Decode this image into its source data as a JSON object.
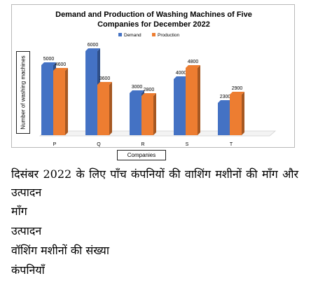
{
  "chart_data": {
    "type": "bar",
    "title_line1": "Demand and Production of Washing Machines of Five",
    "title_line2": "Companies for December 2022",
    "xlabel": "Companies",
    "ylabel": "Number of washing machines",
    "categories": [
      "P",
      "Q",
      "R",
      "S",
      "T"
    ],
    "series": [
      {
        "name": "Demand",
        "values": [
          5000,
          6000,
          3000,
          4000,
          2300
        ],
        "color": "#4472c4"
      },
      {
        "name": "Production",
        "values": [
          4600,
          3600,
          2800,
          4800,
          2900
        ],
        "color": "#ed7d31"
      }
    ],
    "ylim": [
      0,
      6000
    ],
    "grid": false,
    "legend_position": "top-center",
    "three_d": true
  },
  "hindi_text": {
    "title": "दिसंबर 2022 के लिए पाँच कंपनियों की वाशिंग मशीनों की माँग और उत्पादन",
    "demand": "माँग",
    "production": "उत्पादन",
    "ylabel": "वॉशिंग मशीनों की संख्या",
    "xlabel": "कंपनियाँ"
  }
}
